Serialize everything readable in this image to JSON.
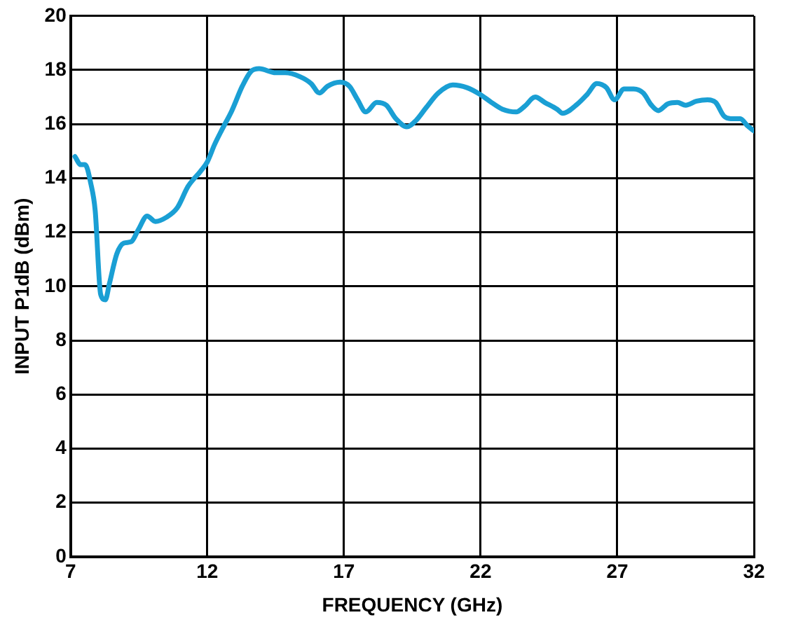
{
  "chart_data": {
    "type": "line",
    "xlabel": "FREQUENCY (GHz)",
    "ylabel": "INPUT P1dB (dBm)",
    "x": [
      7.16,
      7.37,
      7.53,
      7.74,
      7.9,
      8.1,
      8.27,
      8.42,
      8.69,
      8.95,
      9.22,
      9.48,
      9.8,
      10.1,
      10.5,
      10.9,
      11.3,
      11.75,
      12.0,
      12.27,
      12.54,
      12.9,
      13.28,
      13.6,
      13.9,
      14.5,
      14.85,
      15.4,
      15.8,
      16.1,
      16.4,
      16.86,
      17.2,
      17.5,
      17.8,
      18.2,
      18.55,
      18.9,
      19.3,
      19.65,
      20.0,
      20.45,
      20.98,
      21.5,
      21.98,
      22.4,
      22.8,
      23.3,
      23.6,
      24.0,
      24.35,
      24.8,
      25.0,
      25.55,
      25.9,
      26.25,
      26.6,
      26.9,
      27.25,
      27.6,
      27.95,
      28.25,
      28.5,
      28.85,
      29.2,
      29.5,
      29.9,
      30.3,
      30.6,
      30.9,
      31.15,
      31.5,
      31.75,
      32.0
    ],
    "series": [
      {
        "color": "#1a9fd4",
        "values": [
          14.8,
          14.5,
          14.5,
          13.8,
          12.8,
          9.7,
          9.5,
          10.1,
          11.2,
          11.6,
          11.65,
          12.1,
          12.6,
          12.4,
          12.55,
          12.9,
          13.7,
          14.25,
          14.6,
          15.25,
          15.8,
          16.5,
          17.4,
          17.95,
          18.05,
          17.9,
          17.9,
          17.75,
          17.5,
          17.15,
          17.4,
          17.55,
          17.4,
          16.9,
          16.45,
          16.8,
          16.7,
          16.2,
          15.9,
          16.15,
          16.6,
          17.15,
          17.45,
          17.35,
          17.1,
          16.8,
          16.55,
          16.45,
          16.65,
          17.0,
          16.8,
          16.55,
          16.4,
          16.75,
          17.1,
          17.5,
          17.35,
          16.9,
          17.3,
          17.3,
          17.15,
          16.7,
          16.5,
          16.75,
          16.8,
          16.7,
          16.85,
          16.9,
          16.8,
          16.3,
          16.2,
          16.2,
          15.95,
          15.75
        ]
      }
    ],
    "xlim": [
      7,
      32
    ],
    "xticks": [
      7,
      12,
      17,
      22,
      27,
      32
    ],
    "ylim": [
      0,
      20
    ],
    "yticks": [
      0,
      2,
      4,
      6,
      8,
      10,
      12,
      14,
      16,
      18,
      20
    ],
    "grid": true,
    "legend": false,
    "marker": "none",
    "line_style": "solid"
  }
}
